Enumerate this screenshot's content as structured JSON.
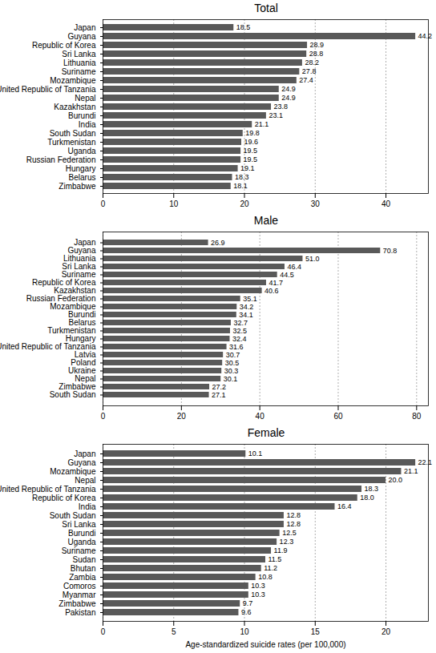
{
  "chart_data": [
    {
      "type": "bar",
      "title": "Total",
      "orientation": "horizontal",
      "data_labels": true,
      "grid": true,
      "color": "#595959",
      "categories": [
        "Japan",
        "Guyana",
        "Republic of Korea",
        "Sri Lanka",
        "Lithuania",
        "Suriname",
        "Mozambique",
        "United Republic of Tanzania",
        "Nepal",
        "Kazakhstan",
        "Burundi",
        "India",
        "South Sudan",
        "Turkmenistan",
        "Uganda",
        "Russian Federation",
        "Hungary",
        "Belarus",
        "Zimbabwe"
      ],
      "values": [
        18.5,
        44.2,
        28.9,
        28.8,
        28.2,
        27.8,
        27.4,
        24.9,
        24.9,
        23.8,
        23.1,
        21.1,
        19.8,
        19.6,
        19.5,
        19.5,
        19.1,
        18.3,
        18.1
      ],
      "value_labels": [
        "18.5",
        "44.2",
        "28.9",
        "28.8",
        "28.2",
        "27.8",
        "27.4",
        "24.9",
        "24.9",
        "23.8",
        "23.1",
        "21.1",
        "19.8",
        "19.6",
        "19.5",
        "19.5",
        "19.1",
        "18.3",
        "18.1"
      ],
      "xlim": [
        0,
        46
      ],
      "xticks": [
        0,
        10,
        20,
        30,
        40
      ]
    },
    {
      "type": "bar",
      "title": "Male",
      "orientation": "horizontal",
      "data_labels": true,
      "grid": true,
      "color": "#595959",
      "categories": [
        "Japan",
        "Guyana",
        "Lithuania",
        "Sri Lanka",
        "Suriname",
        "Republic of Korea",
        "Kazakhstan",
        "Russian Federation",
        "Mozambique",
        "Burundi",
        "Belarus",
        "Turkmenistan",
        "Hungary",
        "United Republic of Tanzania",
        "Latvia",
        "Poland",
        "Ukraine",
        "Nepal",
        "Zimbabwe",
        "South Sudan"
      ],
      "values": [
        26.9,
        70.8,
        51.0,
        46.4,
        44.5,
        41.7,
        40.6,
        35.1,
        34.2,
        34.1,
        32.7,
        32.5,
        32.4,
        31.6,
        30.7,
        30.5,
        30.3,
        30.1,
        27.2,
        27.1
      ],
      "value_labels": [
        "26.9",
        "70.8",
        "51.0",
        "46.4",
        "44.5",
        "41.7",
        "40.6",
        "35.1",
        "34.2",
        "34.1",
        "32.7",
        "32.5",
        "32.4",
        "31.6",
        "30.7",
        "30.5",
        "30.3",
        "30.1",
        "27.2",
        "27.1"
      ],
      "xlim": [
        0,
        83
      ],
      "xticks": [
        0,
        20,
        40,
        60,
        80
      ]
    },
    {
      "type": "bar",
      "title": "Female",
      "orientation": "horizontal",
      "data_labels": true,
      "grid": true,
      "color": "#595959",
      "xlabel": "Age-standardized suicide rates (per 100,000)",
      "categories": [
        "Japan",
        "Guyana",
        "Mozambique",
        "Nepal",
        "United Republic of Tanzania",
        "Republic of Korea",
        "India",
        "South Sudan",
        "Sri Lanka",
        "Burundi",
        "Uganda",
        "Suriname",
        "Sudan",
        "Bhutan",
        "Zambia",
        "Comoros",
        "Myanmar",
        "Zimbabwe",
        "Pakistan"
      ],
      "values": [
        10.1,
        22.1,
        21.1,
        20.0,
        18.3,
        18.0,
        16.4,
        12.8,
        12.8,
        12.5,
        12.3,
        11.9,
        11.5,
        11.2,
        10.8,
        10.3,
        10.3,
        9.7,
        9.6
      ],
      "value_labels": [
        "10.1",
        "22.1",
        "21.1",
        "20.0",
        "18.3",
        "18.0",
        "16.4",
        "12.8",
        "12.8",
        "12.5",
        "12.3",
        "11.9",
        "11.5",
        "11.2",
        "10.8",
        "10.3",
        "10.3",
        "9.7",
        "9.6"
      ],
      "xlim": [
        0,
        23
      ],
      "xticks": [
        0,
        5,
        10,
        15,
        20
      ]
    }
  ]
}
